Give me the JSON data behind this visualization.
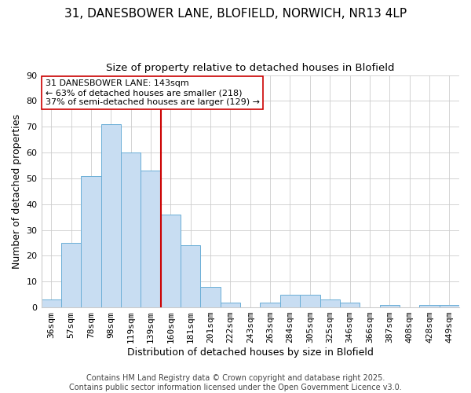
{
  "title": "31, DANESBOWER LANE, BLOFIELD, NORWICH, NR13 4LP",
  "subtitle": "Size of property relative to detached houses in Blofield",
  "bar_labels": [
    "36sqm",
    "57sqm",
    "78sqm",
    "98sqm",
    "119sqm",
    "139sqm",
    "160sqm",
    "181sqm",
    "201sqm",
    "222sqm",
    "243sqm",
    "263sqm",
    "284sqm",
    "305sqm",
    "325sqm",
    "346sqm",
    "366sqm",
    "387sqm",
    "408sqm",
    "428sqm",
    "449sqm"
  ],
  "bar_heights": [
    3,
    25,
    51,
    71,
    60,
    53,
    36,
    24,
    8,
    2,
    0,
    2,
    5,
    5,
    3,
    2,
    0,
    1,
    0,
    1,
    1
  ],
  "bar_color": "#c8ddf2",
  "bar_edge_color": "#6aaed6",
  "vline_x": 5.5,
  "vline_color": "#cc0000",
  "ylim": [
    0,
    90
  ],
  "yticks": [
    0,
    10,
    20,
    30,
    40,
    50,
    60,
    70,
    80,
    90
  ],
  "xlabel": "Distribution of detached houses by size in Blofield",
  "ylabel": "Number of detached properties",
  "annotation_title": "31 DANESBOWER LANE: 143sqm",
  "annotation_line1": "← 63% of detached houses are smaller (218)",
  "annotation_line2": "37% of semi-detached houses are larger (129) →",
  "annotation_box_color": "#ffffff",
  "annotation_box_edge": "#cc0000",
  "footer_line1": "Contains HM Land Registry data © Crown copyright and database right 2025.",
  "footer_line2": "Contains public sector information licensed under the Open Government Licence v3.0.",
  "title_fontsize": 11,
  "subtitle_fontsize": 9.5,
  "axis_label_fontsize": 9,
  "tick_fontsize": 8,
  "annotation_fontsize": 8,
  "footer_fontsize": 7,
  "background_color": "#ffffff",
  "grid_color": "#cccccc"
}
